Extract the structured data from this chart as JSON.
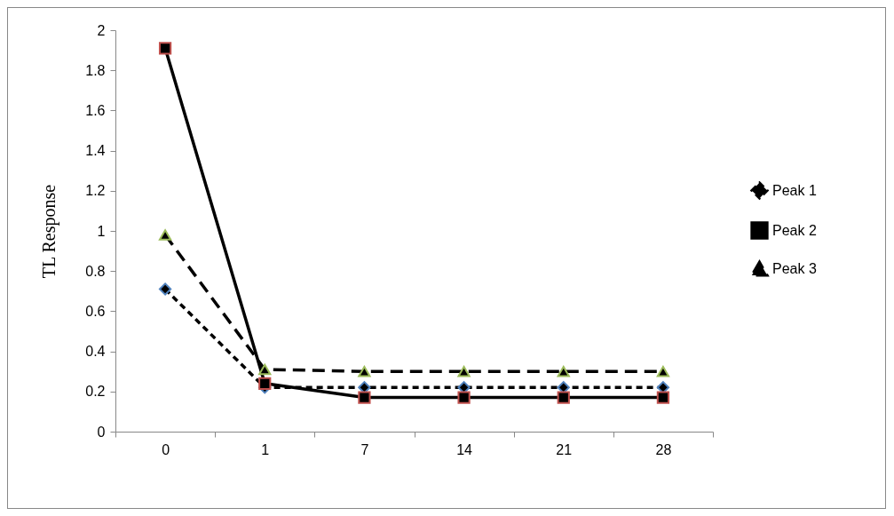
{
  "chart_data": {
    "type": "line",
    "ylabel": "TL Response",
    "categories": [
      "0",
      "1",
      "7",
      "14",
      "21",
      "28"
    ],
    "ylim": [
      0,
      2
    ],
    "yticks": [
      0,
      0.2,
      0.4,
      0.6,
      0.8,
      1,
      1.2,
      1.4,
      1.6,
      1.8,
      2
    ],
    "grid": false,
    "legend": "right",
    "series": [
      {
        "name": "Peak 1",
        "color": "#000000",
        "marker": "diamond",
        "line_style": "dotted",
        "values": [
          0.71,
          0.22,
          0.22,
          0.22,
          0.22,
          0.22
        ]
      },
      {
        "name": "Peak 2",
        "color": "#000000",
        "marker": "square",
        "line_style": "solid",
        "values": [
          1.91,
          0.24,
          0.17,
          0.17,
          0.17,
          0.17
        ]
      },
      {
        "name": "Peak 3",
        "color": "#000000",
        "marker": "triangle",
        "line_style": "dashed",
        "values": [
          0.98,
          0.31,
          0.3,
          0.3,
          0.3,
          0.3
        ]
      }
    ]
  }
}
